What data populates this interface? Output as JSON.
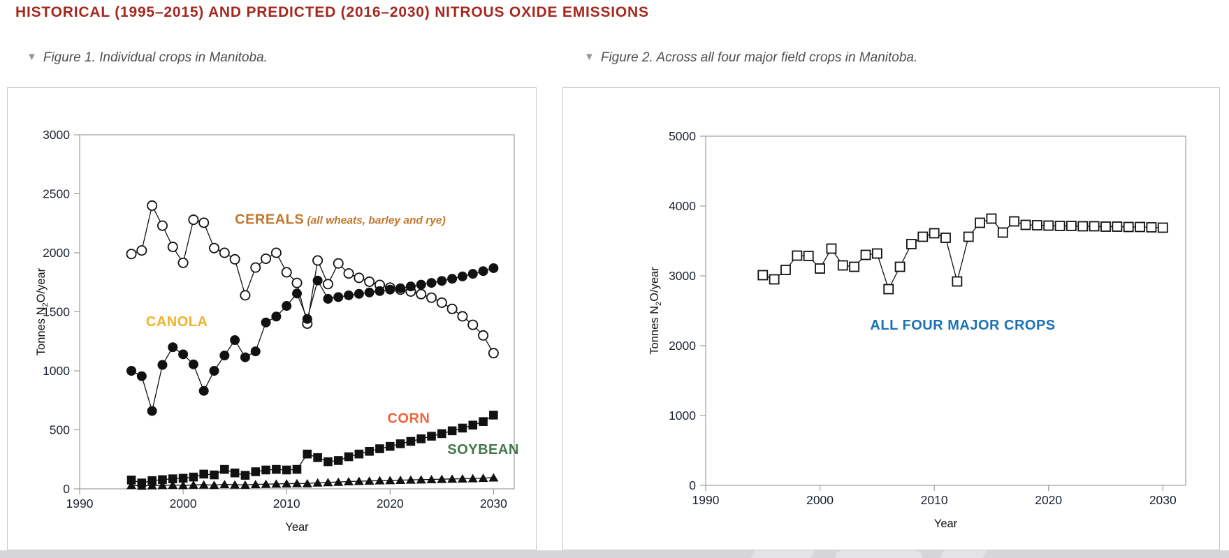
{
  "header": {
    "title": "HISTORICAL (1995–2015) AND PREDICTED (2016–2030) NITROUS OXIDE EMISSIONS"
  },
  "figures": [
    {
      "caption": "Figure 1. Individual crops in Manitoba."
    },
    {
      "caption": "Figure 2. Across all four major field crops in Manitoba."
    }
  ],
  "colors": {
    "title_red": "#A5281F",
    "cereals_label": "#C2772E",
    "canola_label": "#EDB32C",
    "corn_label": "#EE6640",
    "soybean_label": "#41784A",
    "all_crops_label": "#1A72B4",
    "axis_gray": "#8c8c8c",
    "tick_text": "#1b2330"
  },
  "chart_data": [
    {
      "type": "line",
      "title": "",
      "xlabel": "Year",
      "ylabel_parts": [
        "Tonnes N",
        "2",
        "O/year"
      ],
      "xlim": [
        1990,
        2032
      ],
      "ylim": [
        0,
        3000
      ],
      "xticks": [
        1990,
        2000,
        2010,
        2020,
        2030
      ],
      "yticks": [
        0,
        500,
        1000,
        1500,
        2000,
        2500,
        3000
      ],
      "grid": false,
      "legend": "inline-annotations",
      "x": [
        1995,
        1996,
        1997,
        1998,
        1999,
        2000,
        2001,
        2002,
        2003,
        2004,
        2005,
        2006,
        2007,
        2008,
        2009,
        2010,
        2011,
        2012,
        2013,
        2014,
        2015,
        2016,
        2017,
        2018,
        2019,
        2020,
        2021,
        2022,
        2023,
        2024,
        2025,
        2026,
        2027,
        2028,
        2029,
        2030
      ],
      "series": [
        {
          "name": "CEREALS (all wheats, barley and rye)",
          "marker": "open-circle",
          "values": [
            1990,
            2020,
            2400,
            2230,
            2050,
            1915,
            2280,
            2255,
            2040,
            2000,
            1945,
            1640,
            1875,
            1950,
            2000,
            1835,
            1745,
            1400,
            1935,
            1735,
            1910,
            1825,
            1788,
            1755,
            1728,
            1705,
            1688,
            1672,
            1650,
            1620,
            1578,
            1525,
            1462,
            1390,
            1300,
            1150
          ]
        },
        {
          "name": "CANOLA",
          "marker": "filled-circle",
          "values": [
            1000,
            955,
            660,
            1050,
            1200,
            1140,
            1055,
            830,
            1000,
            1130,
            1260,
            1115,
            1165,
            1410,
            1460,
            1550,
            1655,
            1440,
            1765,
            1610,
            1625,
            1640,
            1652,
            1664,
            1676,
            1688,
            1700,
            1715,
            1730,
            1745,
            1762,
            1780,
            1800,
            1822,
            1845,
            1870
          ]
        },
        {
          "name": "CORN",
          "marker": "filled-square",
          "values": [
            75,
            50,
            70,
            78,
            85,
            90,
            100,
            125,
            118,
            165,
            135,
            115,
            145,
            160,
            165,
            160,
            165,
            295,
            265,
            230,
            240,
            272,
            295,
            318,
            340,
            360,
            382,
            402,
            424,
            446,
            468,
            492,
            515,
            540,
            570,
            625
          ]
        },
        {
          "name": "SOYBEAN",
          "marker": "filled-triangle",
          "values": [
            30,
            25,
            28,
            30,
            32,
            30,
            33,
            35,
            32,
            38,
            35,
            33,
            38,
            40,
            42,
            44,
            46,
            45,
            52,
            55,
            58,
            62,
            65,
            67,
            70,
            72,
            74,
            76,
            78,
            80,
            82,
            84,
            86,
            88,
            91,
            95
          ]
        }
      ],
      "annotations": [
        {
          "text": "CEREALS",
          "suffix": " (all wheats, barley and rye)",
          "color": "#C2772E",
          "x": 2005.0,
          "y": 2245,
          "anchor": "start"
        },
        {
          "text": "CANOLA",
          "suffix": "",
          "color": "#EDB32C",
          "x": 1999.4,
          "y": 1380,
          "anchor": "middle"
        },
        {
          "text": "CORN",
          "suffix": "",
          "color": "#EE6640",
          "x": 2021.8,
          "y": 560,
          "anchor": "middle"
        },
        {
          "text": "SOYBEAN",
          "suffix": "",
          "color": "#41784A",
          "x": 2029.0,
          "y": 295,
          "anchor": "middle"
        }
      ]
    },
    {
      "type": "line",
      "title": "",
      "xlabel": "Year",
      "ylabel_parts": [
        "Tonnes N",
        "2",
        "O/year"
      ],
      "xlim": [
        1990,
        2032
      ],
      "ylim": [
        0,
        5000
      ],
      "xticks": [
        1990,
        2000,
        2010,
        2020,
        2030
      ],
      "yticks": [
        0,
        1000,
        2000,
        3000,
        4000,
        5000
      ],
      "grid": false,
      "legend": "inline-annotations",
      "x": [
        1995,
        1996,
        1997,
        1998,
        1999,
        2000,
        2001,
        2002,
        2003,
        2004,
        2005,
        2006,
        2007,
        2008,
        2009,
        2010,
        2011,
        2012,
        2013,
        2014,
        2015,
        2016,
        2017,
        2018,
        2019,
        2020,
        2021,
        2022,
        2023,
        2024,
        2025,
        2026,
        2027,
        2028,
        2029,
        2030
      ],
      "series": [
        {
          "name": "ALL FOUR MAJOR CROPS",
          "marker": "open-square",
          "values": [
            3010,
            2950,
            3085,
            3290,
            3285,
            3105,
            3390,
            3150,
            3130,
            3300,
            3320,
            2810,
            3130,
            3455,
            3560,
            3610,
            3545,
            2920,
            3560,
            3760,
            3820,
            3620,
            3780,
            3730,
            3725,
            3720,
            3715,
            3715,
            3710,
            3710,
            3705,
            3705,
            3700,
            3700,
            3695,
            3690
          ]
        }
      ],
      "annotations": [
        {
          "text": "ALL FOUR MAJOR CROPS",
          "suffix": "",
          "color": "#1A72B4",
          "x": 2012.5,
          "y": 2230,
          "anchor": "middle"
        }
      ]
    }
  ]
}
